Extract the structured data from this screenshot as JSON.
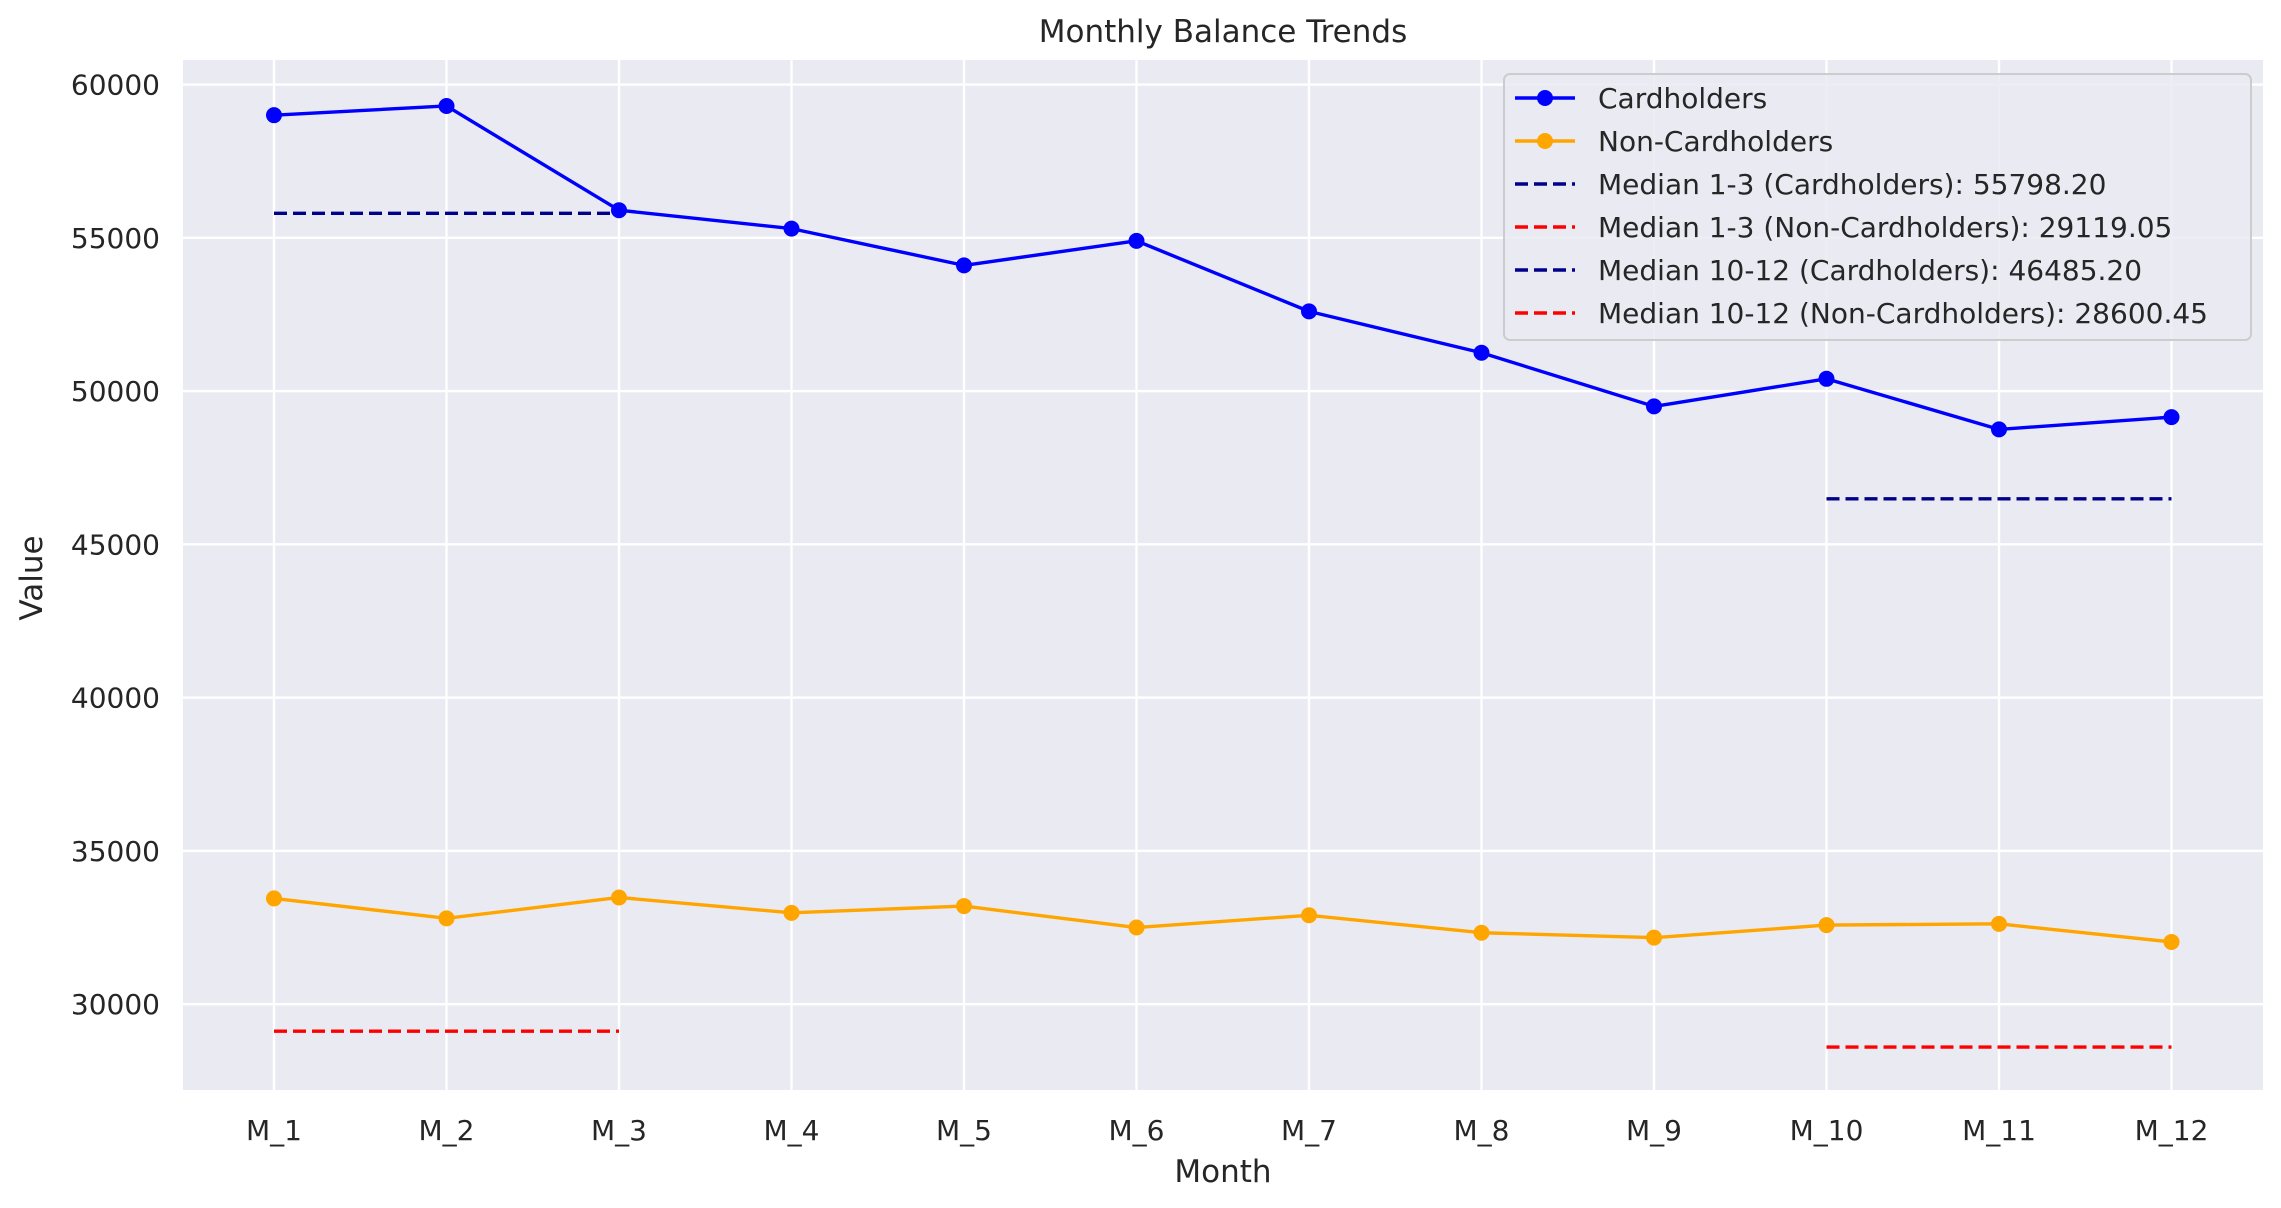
{
  "chart_data": {
    "type": "line",
    "title": "Monthly Balance Trends",
    "xlabel": "Month",
    "ylabel": "Value",
    "categories": [
      "M_1",
      "M_2",
      "M_3",
      "M_4",
      "M_5",
      "M_6",
      "M_7",
      "M_8",
      "M_9",
      "M_10",
      "M_11",
      "M_12"
    ],
    "ylim": [
      27200,
      60800
    ],
    "yticks": [
      30000,
      35000,
      40000,
      45000,
      50000,
      55000,
      60000
    ],
    "grid": true,
    "legend_position": "top-right",
    "series": [
      {
        "name": "Cardholders",
        "color": "#0000ff",
        "marker": "circle",
        "values": [
          59000,
          59300,
          55900,
          55300,
          54100,
          54900,
          52600,
          51250,
          49500,
          50400,
          48750,
          49150
        ]
      },
      {
        "name": "Non-Cardholders",
        "color": "#ffa500",
        "marker": "circle",
        "values": [
          33450,
          32800,
          33480,
          32980,
          33200,
          32500,
          32900,
          32330,
          32170,
          32580,
          32620,
          32030
        ]
      }
    ],
    "median_lines": [
      {
        "label": "Median 1-3 (Cardholders): 55798.20",
        "color": "#00008b",
        "value": 55798.2,
        "from": "M_1",
        "to": "M_3"
      },
      {
        "label": "Median 1-3 (Non-Cardholders): 29119.05",
        "color": "#ff0000",
        "value": 29119.05,
        "from": "M_1",
        "to": "M_3"
      },
      {
        "label": "Median 10-12 (Cardholders): 46485.20",
        "color": "#00008b",
        "value": 46485.2,
        "from": "M_10",
        "to": "M_12"
      },
      {
        "label": "Median 10-12 (Non-Cardholders): 28600.45",
        "color": "#ff0000",
        "value": 28600.45,
        "from": "M_10",
        "to": "M_12"
      }
    ]
  }
}
